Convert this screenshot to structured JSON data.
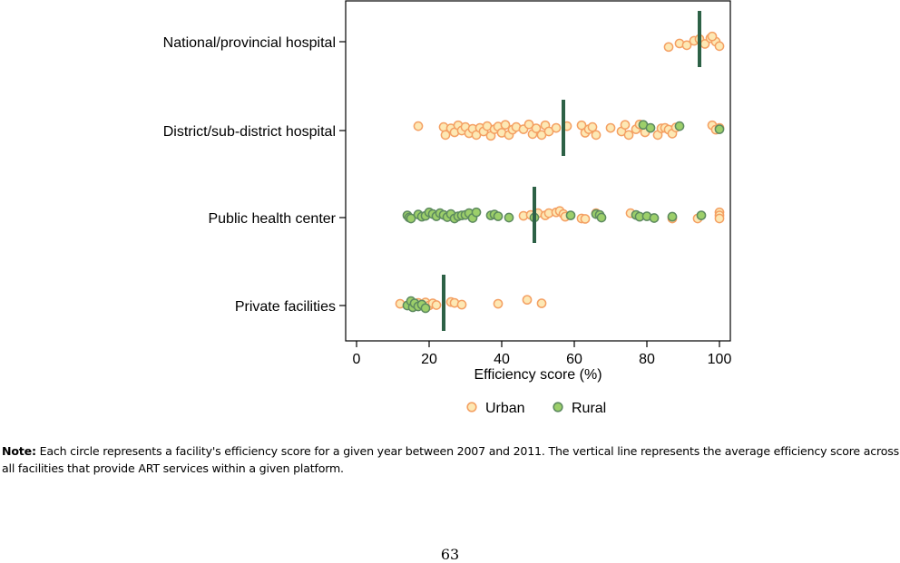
{
  "chart_data": {
    "type": "scatter",
    "xlabel": "Efficiency score (%)",
    "xlim": [
      -3,
      103
    ],
    "xticks": [
      0,
      20,
      40,
      60,
      80,
      100
    ],
    "categories": [
      "National/provincial hospital",
      "District/sub-district hospital",
      "Public health center",
      "Private facilities"
    ],
    "legend": {
      "position": "bottom-center",
      "entries": [
        "Urban",
        "Rural"
      ]
    },
    "colors": {
      "urban_fill": "#fde8b4",
      "urban_stroke": "#f4a063",
      "rural_fill": "#9ccf6a",
      "rural_stroke": "#5d8a5f",
      "mean_line": "#2d6146"
    },
    "means": [
      94.5,
      57,
      49,
      24
    ],
    "series": [
      {
        "name": "Urban",
        "points": [
          [
            0,
            86,
            -0.12
          ],
          [
            0,
            89,
            -0.04
          ],
          [
            0,
            91,
            -0.08
          ],
          [
            0,
            93,
            0.02
          ],
          [
            0,
            94.5,
            0.06
          ],
          [
            0,
            96,
            -0.05
          ],
          [
            0,
            97.5,
            0.08
          ],
          [
            0,
            99,
            0
          ],
          [
            0,
            100,
            -0.1
          ],
          [
            0,
            98,
            0.12
          ],
          [
            1,
            17,
            0.1
          ],
          [
            1,
            24,
            0.08
          ],
          [
            1,
            24.5,
            -0.1
          ],
          [
            1,
            26,
            0.05
          ],
          [
            1,
            27,
            -0.04
          ],
          [
            1,
            28,
            0.12
          ],
          [
            1,
            29,
            0
          ],
          [
            1,
            30,
            0.08
          ],
          [
            1,
            31,
            -0.06
          ],
          [
            1,
            32,
            0.04
          ],
          [
            1,
            33,
            -0.1
          ],
          [
            1,
            34,
            0.06
          ],
          [
            1,
            35,
            -0.02
          ],
          [
            1,
            36,
            0.1
          ],
          [
            1,
            37,
            -0.12
          ],
          [
            1,
            38,
            0.03
          ],
          [
            1,
            39,
            0.09
          ],
          [
            1,
            40,
            -0.05
          ],
          [
            1,
            41,
            0.13
          ],
          [
            1,
            42,
            -0.1
          ],
          [
            1,
            43,
            0.02
          ],
          [
            1,
            44,
            0.08
          ],
          [
            1,
            46,
            0.03
          ],
          [
            1,
            47.5,
            0.14
          ],
          [
            1,
            48.5,
            -0.08
          ],
          [
            1,
            49.5,
            0.05
          ],
          [
            1,
            51,
            -0.1
          ],
          [
            1,
            52,
            0.12
          ],
          [
            1,
            53,
            -0.02
          ],
          [
            1,
            55,
            0.06
          ],
          [
            1,
            58,
            0.1
          ],
          [
            1,
            62,
            0.12
          ],
          [
            1,
            63,
            -0.05
          ],
          [
            1,
            64,
            0.03
          ],
          [
            1,
            65,
            0.08
          ],
          [
            1,
            66,
            -0.1
          ],
          [
            1,
            70,
            0.06
          ],
          [
            1,
            73,
            -0.02
          ],
          [
            1,
            74,
            0.13
          ],
          [
            1,
            75,
            -0.1
          ],
          [
            1,
            77,
            0.03
          ],
          [
            1,
            78,
            0.14
          ],
          [
            1,
            79.5,
            -0.04
          ],
          [
            1,
            83,
            -0.1
          ],
          [
            1,
            84,
            0.05
          ],
          [
            1,
            85,
            0.06
          ],
          [
            1,
            86,
            0.02
          ],
          [
            1,
            87,
            -0.07
          ],
          [
            1,
            88,
            0.07
          ],
          [
            1,
            98,
            0.12
          ],
          [
            1,
            99,
            0.02
          ],
          [
            1,
            100,
            0.06
          ],
          [
            2,
            46,
            0.04
          ],
          [
            2,
            48,
            0.06
          ],
          [
            2,
            50,
            0.1
          ],
          [
            2,
            52,
            0.05
          ],
          [
            2,
            53,
            0.1
          ],
          [
            2,
            55,
            0.12
          ],
          [
            2,
            56,
            0.15
          ],
          [
            2,
            57,
            0.08
          ],
          [
            2,
            57.5,
            0.02
          ],
          [
            2,
            62,
            -0.02
          ],
          [
            2,
            63,
            -0.03
          ],
          [
            2,
            66,
            0.1
          ],
          [
            2,
            75.5,
            0.1
          ],
          [
            2,
            87,
            -0.02
          ],
          [
            2,
            94,
            -0.02
          ],
          [
            2,
            100,
            0.12
          ],
          [
            2,
            100,
            0.05
          ],
          [
            2,
            100,
            -0.02
          ],
          [
            3,
            12,
            0.04
          ],
          [
            3,
            16,
            0.03
          ],
          [
            3,
            17,
            0.06
          ],
          [
            3,
            18,
            0.02
          ],
          [
            3,
            19,
            0.07
          ],
          [
            3,
            20,
            0
          ],
          [
            3,
            21,
            0.05
          ],
          [
            3,
            22,
            0.01
          ],
          [
            3,
            26,
            0.08
          ],
          [
            3,
            27,
            0.06
          ],
          [
            3,
            29,
            0.02
          ],
          [
            3,
            39,
            0.04
          ],
          [
            3,
            47,
            0.13
          ],
          [
            3,
            51,
            0.05
          ]
        ]
      },
      {
        "name": "Rural",
        "points": [
          [
            1,
            79,
            0.13
          ],
          [
            1,
            81,
            0.06
          ],
          [
            1,
            89,
            0.1
          ],
          [
            1,
            100,
            0.03
          ],
          [
            2,
            14,
            0.05
          ],
          [
            2,
            14.5,
            0
          ],
          [
            2,
            15,
            -0.02
          ],
          [
            2,
            17,
            0.07
          ],
          [
            2,
            18,
            0.02
          ],
          [
            2,
            19,
            0.04
          ],
          [
            2,
            20,
            0.12
          ],
          [
            2,
            21,
            0.08
          ],
          [
            2,
            22,
            0.03
          ],
          [
            2,
            23,
            0.1
          ],
          [
            2,
            24,
            0.06
          ],
          [
            2,
            25,
            0.01
          ],
          [
            2,
            26,
            0.08
          ],
          [
            2,
            27,
            -0.02
          ],
          [
            2,
            28,
            0.03
          ],
          [
            2,
            29,
            0.05
          ],
          [
            2,
            30,
            0.06
          ],
          [
            2,
            31,
            0.1
          ],
          [
            2,
            32,
            -0.01
          ],
          [
            2,
            33,
            0.12
          ],
          [
            2,
            37,
            0.05
          ],
          [
            2,
            38,
            0.07
          ],
          [
            2,
            39,
            0.03
          ],
          [
            2,
            42,
            0
          ],
          [
            2,
            49,
            0
          ],
          [
            2,
            59,
            0.05
          ],
          [
            2,
            66,
            0.08
          ],
          [
            2,
            67,
            0.06
          ],
          [
            2,
            67.5,
            0
          ],
          [
            2,
            77,
            0.06
          ],
          [
            2,
            78,
            0.02
          ],
          [
            2,
            80,
            0.03
          ],
          [
            2,
            82,
            -0.01
          ],
          [
            2,
            87,
            0.02
          ],
          [
            2,
            95,
            0.05
          ],
          [
            3,
            14,
            0
          ],
          [
            3,
            15,
            0.1
          ],
          [
            3,
            15.5,
            -0.04
          ],
          [
            3,
            16,
            0.05
          ],
          [
            3,
            17,
            -0.02
          ],
          [
            3,
            18,
            0.02
          ],
          [
            3,
            19,
            -0.06
          ]
        ]
      }
    ]
  },
  "note": {
    "label": "Note:",
    "text": " Each circle represents a facility's efficiency score for a given year between 2007 and 2011. The vertical line represents the average efficiency score across all facilities that provide ART services within a given platform."
  },
  "page_number": "63"
}
